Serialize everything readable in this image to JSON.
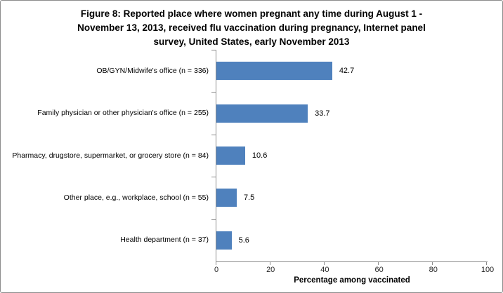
{
  "chart_data": {
    "type": "bar",
    "orientation": "horizontal",
    "title": "Figure 8: Reported place where women pregnant any time during August 1 - November 13, 2013, received flu vaccination during pregnancy, Internet panel survey, United States, early November 2013",
    "title_lines": [
      "Figure 8: Reported place where women pregnant any time during August 1 -",
      "November 13, 2013, received flu vaccination during pregnancy, Internet panel",
      "survey, United States, early November 2013"
    ],
    "categories": [
      "OB/GYN/Midwife's office (n = 336)",
      "Family physician or other physician's office (n = 255)",
      "Pharmacy, drugstore, supermarket, or grocery store (n = 84)",
      "Other place, e.g., workplace, school (n = 55)",
      "Health department (n = 37)"
    ],
    "values": [
      42.7,
      33.7,
      10.6,
      7.5,
      5.6
    ],
    "value_labels": [
      "42.7",
      "33.7",
      "10.6",
      "7.5",
      "5.6"
    ],
    "xlabel": "Percentage among vaccinated",
    "ylabel": "",
    "xlim": [
      0,
      100
    ],
    "x_ticks": [
      "0",
      "20",
      "40",
      "60",
      "80",
      "100"
    ],
    "grid": false,
    "legend": "none",
    "colors": {
      "bar": "#4F81BD",
      "axis": "#8C8C8C",
      "frame_border": "#8C8C8C",
      "title_text": "#000000",
      "tick_text": "#262626",
      "background": "#FFFFFF"
    }
  }
}
